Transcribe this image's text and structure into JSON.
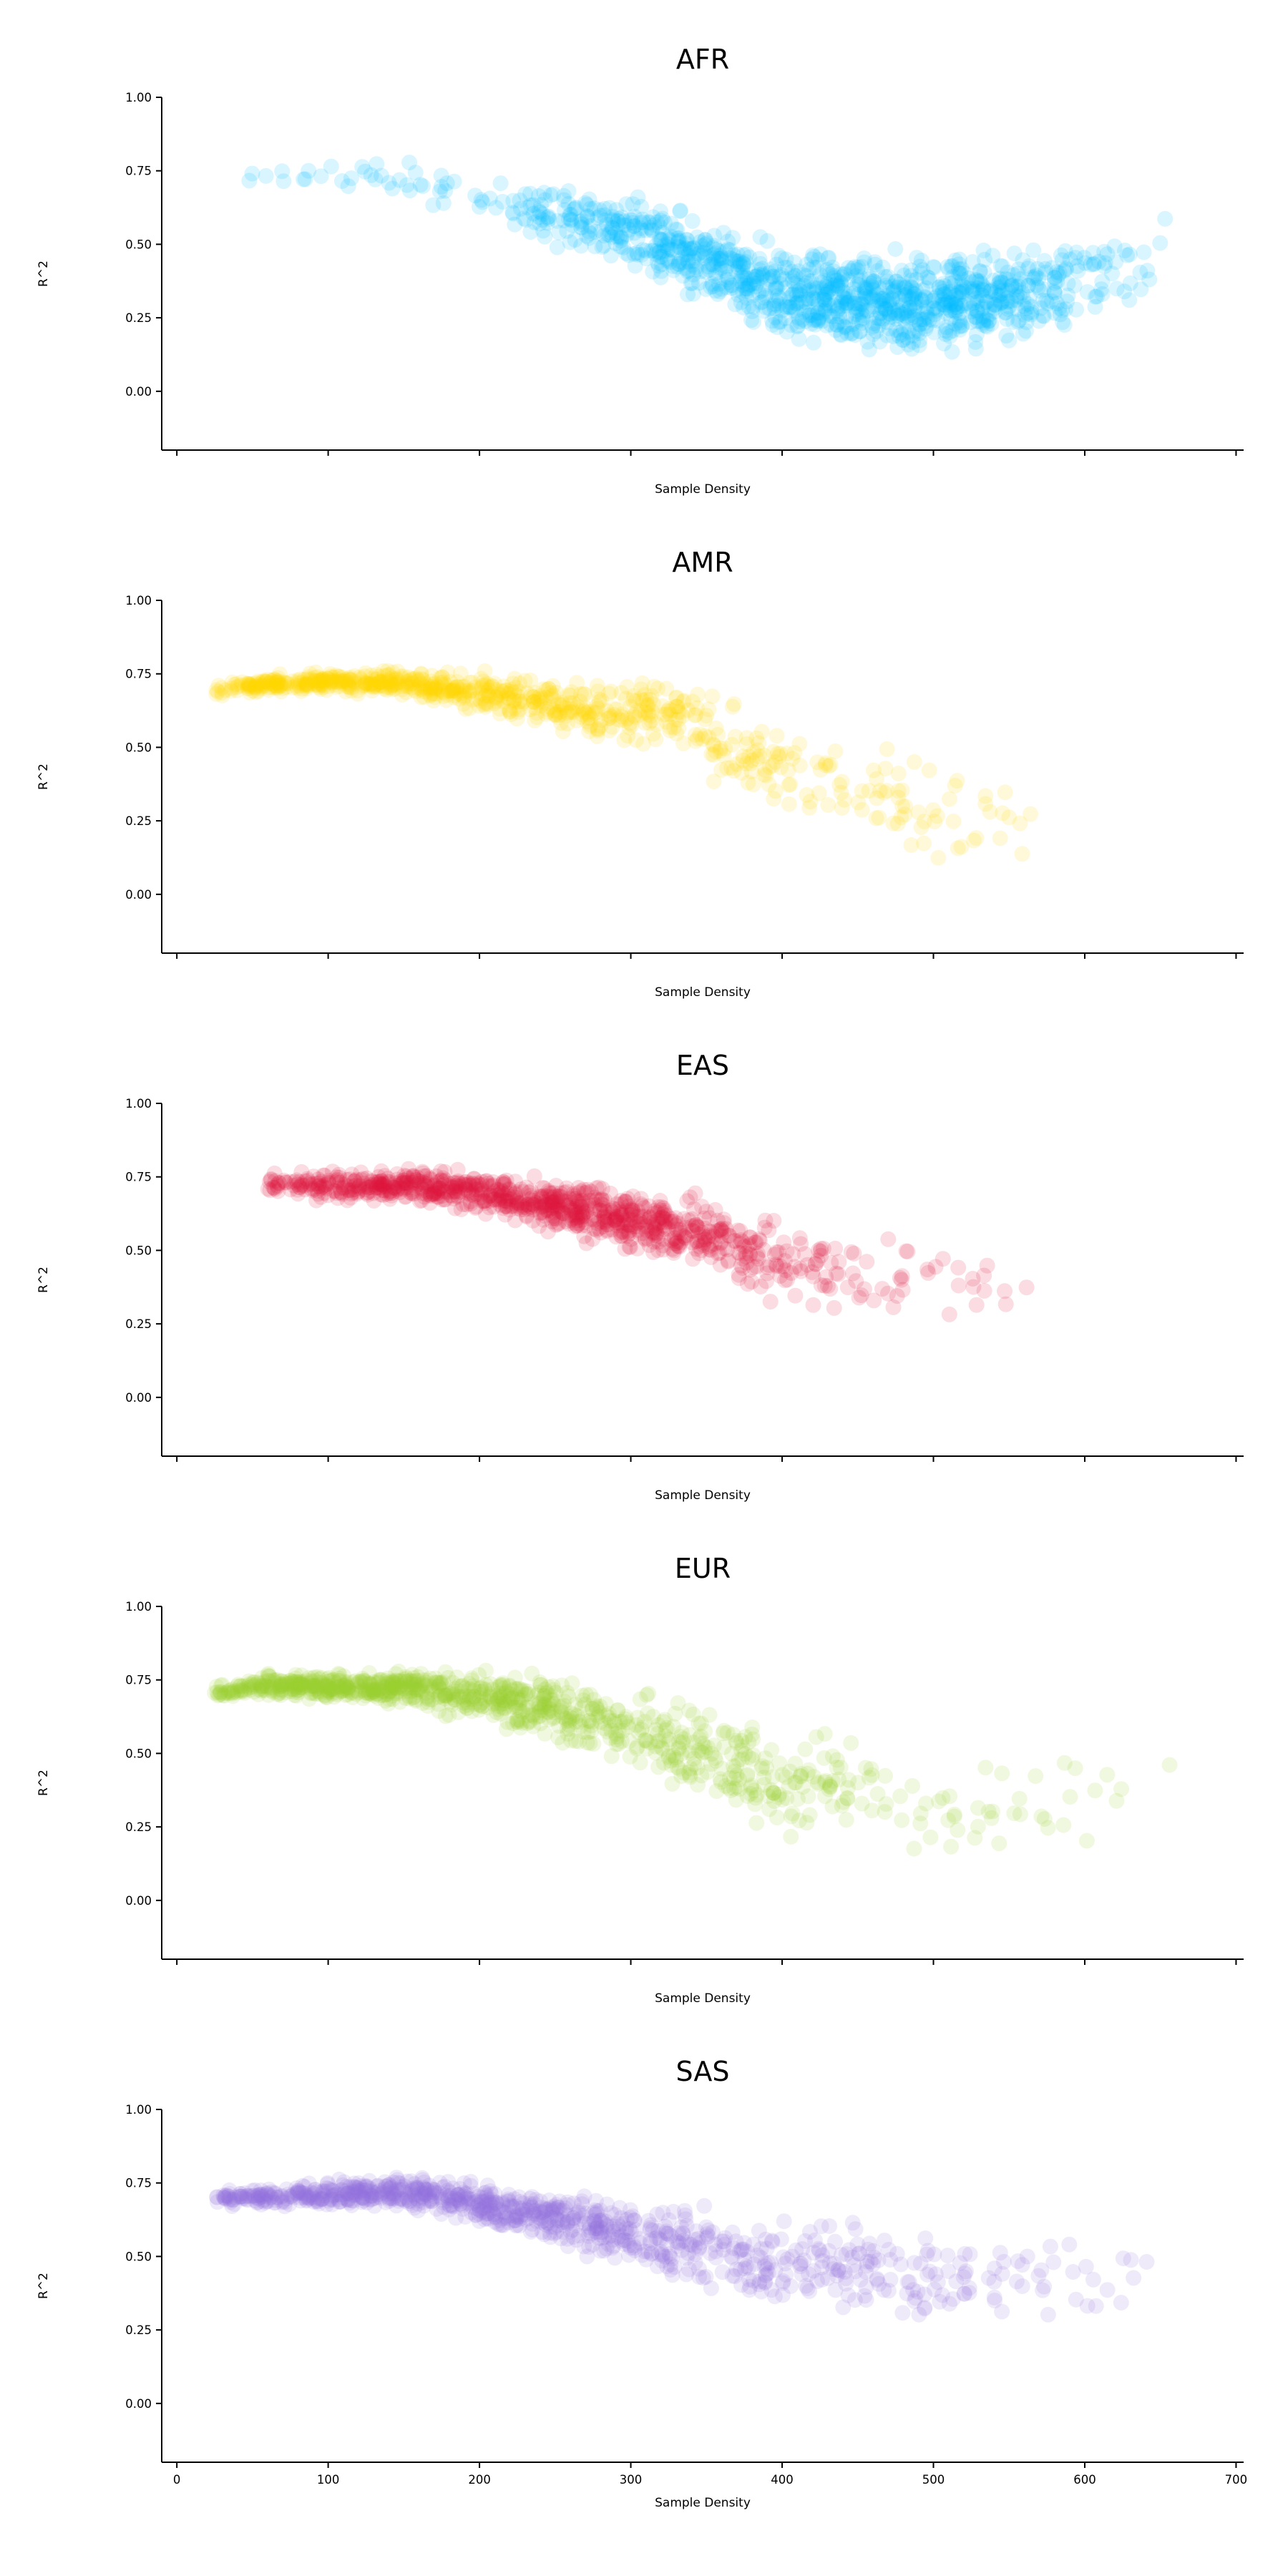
{
  "chart_data": {
    "type": "scatter",
    "panel_count": 5,
    "shared_x": true,
    "xlabel": "Sample Density",
    "ylabel": "R^2",
    "xlim": [
      -10,
      705
    ],
    "ylim": [
      -0.2,
      1.0
    ],
    "x_ticks": [
      0,
      100,
      200,
      300,
      400,
      500,
      600,
      700
    ],
    "x_tick_labels": [
      "0",
      "100",
      "200",
      "300",
      "400",
      "500",
      "600",
      "700"
    ],
    "y_ticks": [
      0.0,
      0.25,
      0.5,
      0.75,
      1.0
    ],
    "y_tick_labels": [
      "0.00",
      "0.25",
      "0.50",
      "0.75",
      "1.00"
    ],
    "x_tick_labels_shown_on": "bottom panel only",
    "grid": false,
    "marker_alpha": 0.15,
    "panels": [
      {
        "title": "AFR",
        "color": "#00BFFF",
        "point_count": 1200,
        "x_range": [
          45,
          655
        ],
        "trend": [
          [
            45,
            0.74
          ],
          [
            150,
            0.72
          ],
          [
            250,
            0.6
          ],
          [
            320,
            0.5
          ],
          [
            400,
            0.33
          ],
          [
            450,
            0.3
          ],
          [
            500,
            0.3
          ],
          [
            560,
            0.33
          ],
          [
            650,
            0.45
          ]
        ],
        "spread": [
          [
            45,
            0.02
          ],
          [
            200,
            0.05
          ],
          [
            330,
            0.1
          ],
          [
            430,
            0.12
          ],
          [
            520,
            0.12
          ],
          [
            620,
            0.1
          ]
        ],
        "density": [
          [
            45,
            0.05
          ],
          [
            200,
            0.1
          ],
          [
            300,
            0.6
          ],
          [
            400,
            1.0
          ],
          [
            500,
            1.0
          ],
          [
            560,
            0.8
          ],
          [
            600,
            0.2
          ],
          [
            660,
            0.05
          ]
        ]
      },
      {
        "title": "AMR",
        "color": "#FFD700",
        "point_count": 800,
        "x_range": [
          25,
          570
        ],
        "trend": [
          [
            25,
            0.69
          ],
          [
            60,
            0.72
          ],
          [
            150,
            0.72
          ],
          [
            250,
            0.65
          ],
          [
            300,
            0.6
          ],
          [
            330,
            0.62
          ],
          [
            380,
            0.45
          ],
          [
            420,
            0.4
          ],
          [
            480,
            0.3
          ],
          [
            520,
            0.2
          ],
          [
            565,
            0.3
          ]
        ],
        "spread": [
          [
            25,
            0.02
          ],
          [
            150,
            0.03
          ],
          [
            270,
            0.07
          ],
          [
            350,
            0.1
          ],
          [
            450,
            0.12
          ],
          [
            560,
            0.15
          ]
        ],
        "density": [
          [
            25,
            0.4
          ],
          [
            60,
            1.0
          ],
          [
            150,
            1.0
          ],
          [
            250,
            0.8
          ],
          [
            330,
            0.6
          ],
          [
            400,
            0.3
          ],
          [
            480,
            0.15
          ],
          [
            570,
            0.05
          ]
        ]
      },
      {
        "title": "EAS",
        "color": "#DC143C",
        "point_count": 1000,
        "x_range": [
          60,
          580
        ],
        "trend": [
          [
            60,
            0.72
          ],
          [
            160,
            0.72
          ],
          [
            250,
            0.65
          ],
          [
            300,
            0.6
          ],
          [
            350,
            0.55
          ],
          [
            400,
            0.45
          ],
          [
            450,
            0.4
          ],
          [
            500,
            0.4
          ],
          [
            570,
            0.4
          ]
        ],
        "spread": [
          [
            60,
            0.03
          ],
          [
            200,
            0.05
          ],
          [
            300,
            0.07
          ],
          [
            400,
            0.1
          ],
          [
            500,
            0.1
          ]
        ],
        "density": [
          [
            60,
            0.2
          ],
          [
            150,
            0.9
          ],
          [
            250,
            1.0
          ],
          [
            300,
            1.0
          ],
          [
            350,
            0.7
          ],
          [
            400,
            0.4
          ],
          [
            450,
            0.15
          ],
          [
            580,
            0.03
          ]
        ]
      },
      {
        "title": "EUR",
        "color": "#9ACD32",
        "point_count": 1000,
        "x_range": [
          25,
          675
        ],
        "trend": [
          [
            25,
            0.7
          ],
          [
            50,
            0.73
          ],
          [
            150,
            0.72
          ],
          [
            200,
            0.7
          ],
          [
            250,
            0.65
          ],
          [
            300,
            0.58
          ],
          [
            350,
            0.5
          ],
          [
            400,
            0.4
          ],
          [
            450,
            0.38
          ],
          [
            500,
            0.3
          ],
          [
            560,
            0.3
          ],
          [
            675,
            0.45
          ]
        ],
        "spread": [
          [
            25,
            0.02
          ],
          [
            150,
            0.04
          ],
          [
            250,
            0.08
          ],
          [
            350,
            0.12
          ],
          [
            450,
            0.13
          ],
          [
            550,
            0.12
          ]
        ],
        "density": [
          [
            25,
            0.5
          ],
          [
            80,
            1.0
          ],
          [
            180,
            0.9
          ],
          [
            280,
            0.7
          ],
          [
            350,
            0.5
          ],
          [
            420,
            0.3
          ],
          [
            480,
            0.15
          ],
          [
            560,
            0.05
          ],
          [
            680,
            0.02
          ]
        ]
      },
      {
        "title": "SAS",
        "color": "#9370DB",
        "point_count": 1000,
        "x_range": [
          25,
          650
        ],
        "trend": [
          [
            25,
            0.7
          ],
          [
            150,
            0.72
          ],
          [
            250,
            0.63
          ],
          [
            300,
            0.57
          ],
          [
            350,
            0.52
          ],
          [
            400,
            0.47
          ],
          [
            450,
            0.45
          ],
          [
            500,
            0.4
          ],
          [
            560,
            0.42
          ],
          [
            640,
            0.45
          ]
        ],
        "spread": [
          [
            25,
            0.02
          ],
          [
            150,
            0.04
          ],
          [
            250,
            0.06
          ],
          [
            350,
            0.1
          ],
          [
            450,
            0.12
          ],
          [
            550,
            0.12
          ]
        ],
        "density": [
          [
            25,
            0.5
          ],
          [
            100,
            1.0
          ],
          [
            200,
            1.0
          ],
          [
            280,
            0.8
          ],
          [
            350,
            0.6
          ],
          [
            420,
            0.45
          ],
          [
            500,
            0.3
          ],
          [
            580,
            0.12
          ],
          [
            650,
            0.05
          ]
        ]
      }
    ]
  }
}
